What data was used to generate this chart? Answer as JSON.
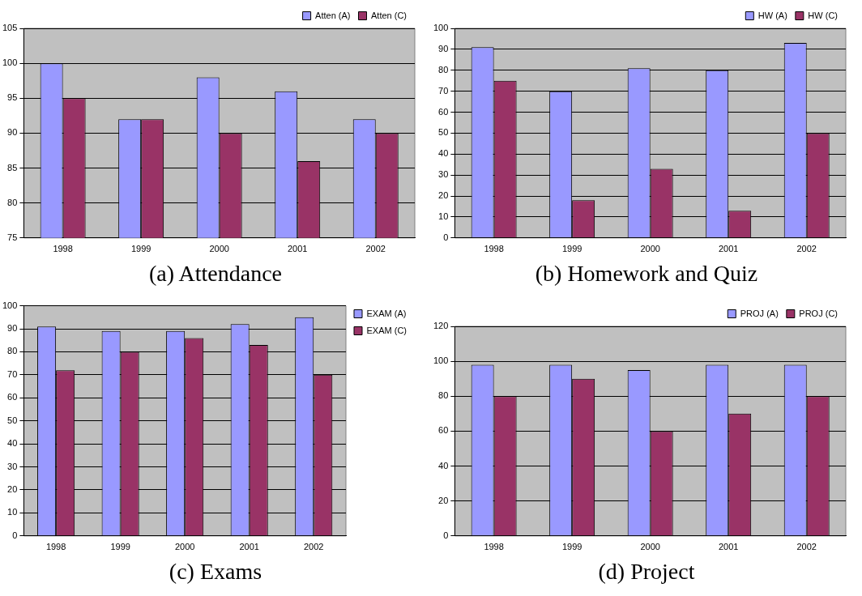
{
  "chart_data": [
    {
      "type": "bar",
      "title": "(a) Attendance",
      "categories": [
        "1998",
        "1999",
        "2000",
        "2001",
        "2002"
      ],
      "series": [
        {
          "name": "Atten (A)",
          "color": "#9999ff",
          "values": [
            100,
            92,
            98,
            96,
            92
          ]
        },
        {
          "name": "Atten (C)",
          "color": "#993366",
          "values": [
            95,
            92,
            90,
            86,
            90
          ]
        }
      ],
      "ylim": [
        75,
        105
      ],
      "yticks": [
        75,
        80,
        85,
        90,
        95,
        100,
        105
      ],
      "grid": "y",
      "legend": "top right"
    },
    {
      "type": "bar",
      "title": "(b) Homework and Quiz",
      "categories": [
        "1998",
        "1999",
        "2000",
        "2001",
        "2002"
      ],
      "series": [
        {
          "name": "HW (A)",
          "color": "#9999ff",
          "values": [
            91,
            70,
            81,
            80,
            93
          ]
        },
        {
          "name": "HW (C)",
          "color": "#993366",
          "values": [
            75,
            18,
            33,
            13,
            50
          ]
        }
      ],
      "ylim": [
        0,
        100
      ],
      "yticks": [
        0,
        10,
        20,
        30,
        40,
        50,
        60,
        70,
        80,
        90,
        100
      ],
      "grid": "y",
      "legend": "top right"
    },
    {
      "type": "bar",
      "title": "(c) Exams",
      "categories": [
        "1998",
        "1999",
        "2000",
        "2001",
        "2002"
      ],
      "series": [
        {
          "name": "EXAM (A)",
          "color": "#9999ff",
          "values": [
            91,
            89,
            89,
            92,
            95
          ]
        },
        {
          "name": "EXAM (C)",
          "color": "#993366",
          "values": [
            72,
            80,
            86,
            83,
            70
          ]
        }
      ],
      "ylim": [
        0,
        100
      ],
      "yticks": [
        0,
        10,
        20,
        30,
        40,
        50,
        60,
        70,
        80,
        90,
        100
      ],
      "grid": "y",
      "legend": "right"
    },
    {
      "type": "bar",
      "title": "(d) Project",
      "categories": [
        "1998",
        "1999",
        "2000",
        "2001",
        "2002"
      ],
      "series": [
        {
          "name": "PROJ (A)",
          "color": "#9999ff",
          "values": [
            98,
            98,
            95,
            98,
            98
          ]
        },
        {
          "name": "PROJ (C)",
          "color": "#993366",
          "values": [
            80,
            90,
            60,
            70,
            80
          ]
        }
      ],
      "ylim": [
        0,
        120
      ],
      "yticks": [
        0,
        20,
        40,
        60,
        80,
        100,
        120
      ],
      "grid": "y",
      "legend": "top right"
    }
  ]
}
